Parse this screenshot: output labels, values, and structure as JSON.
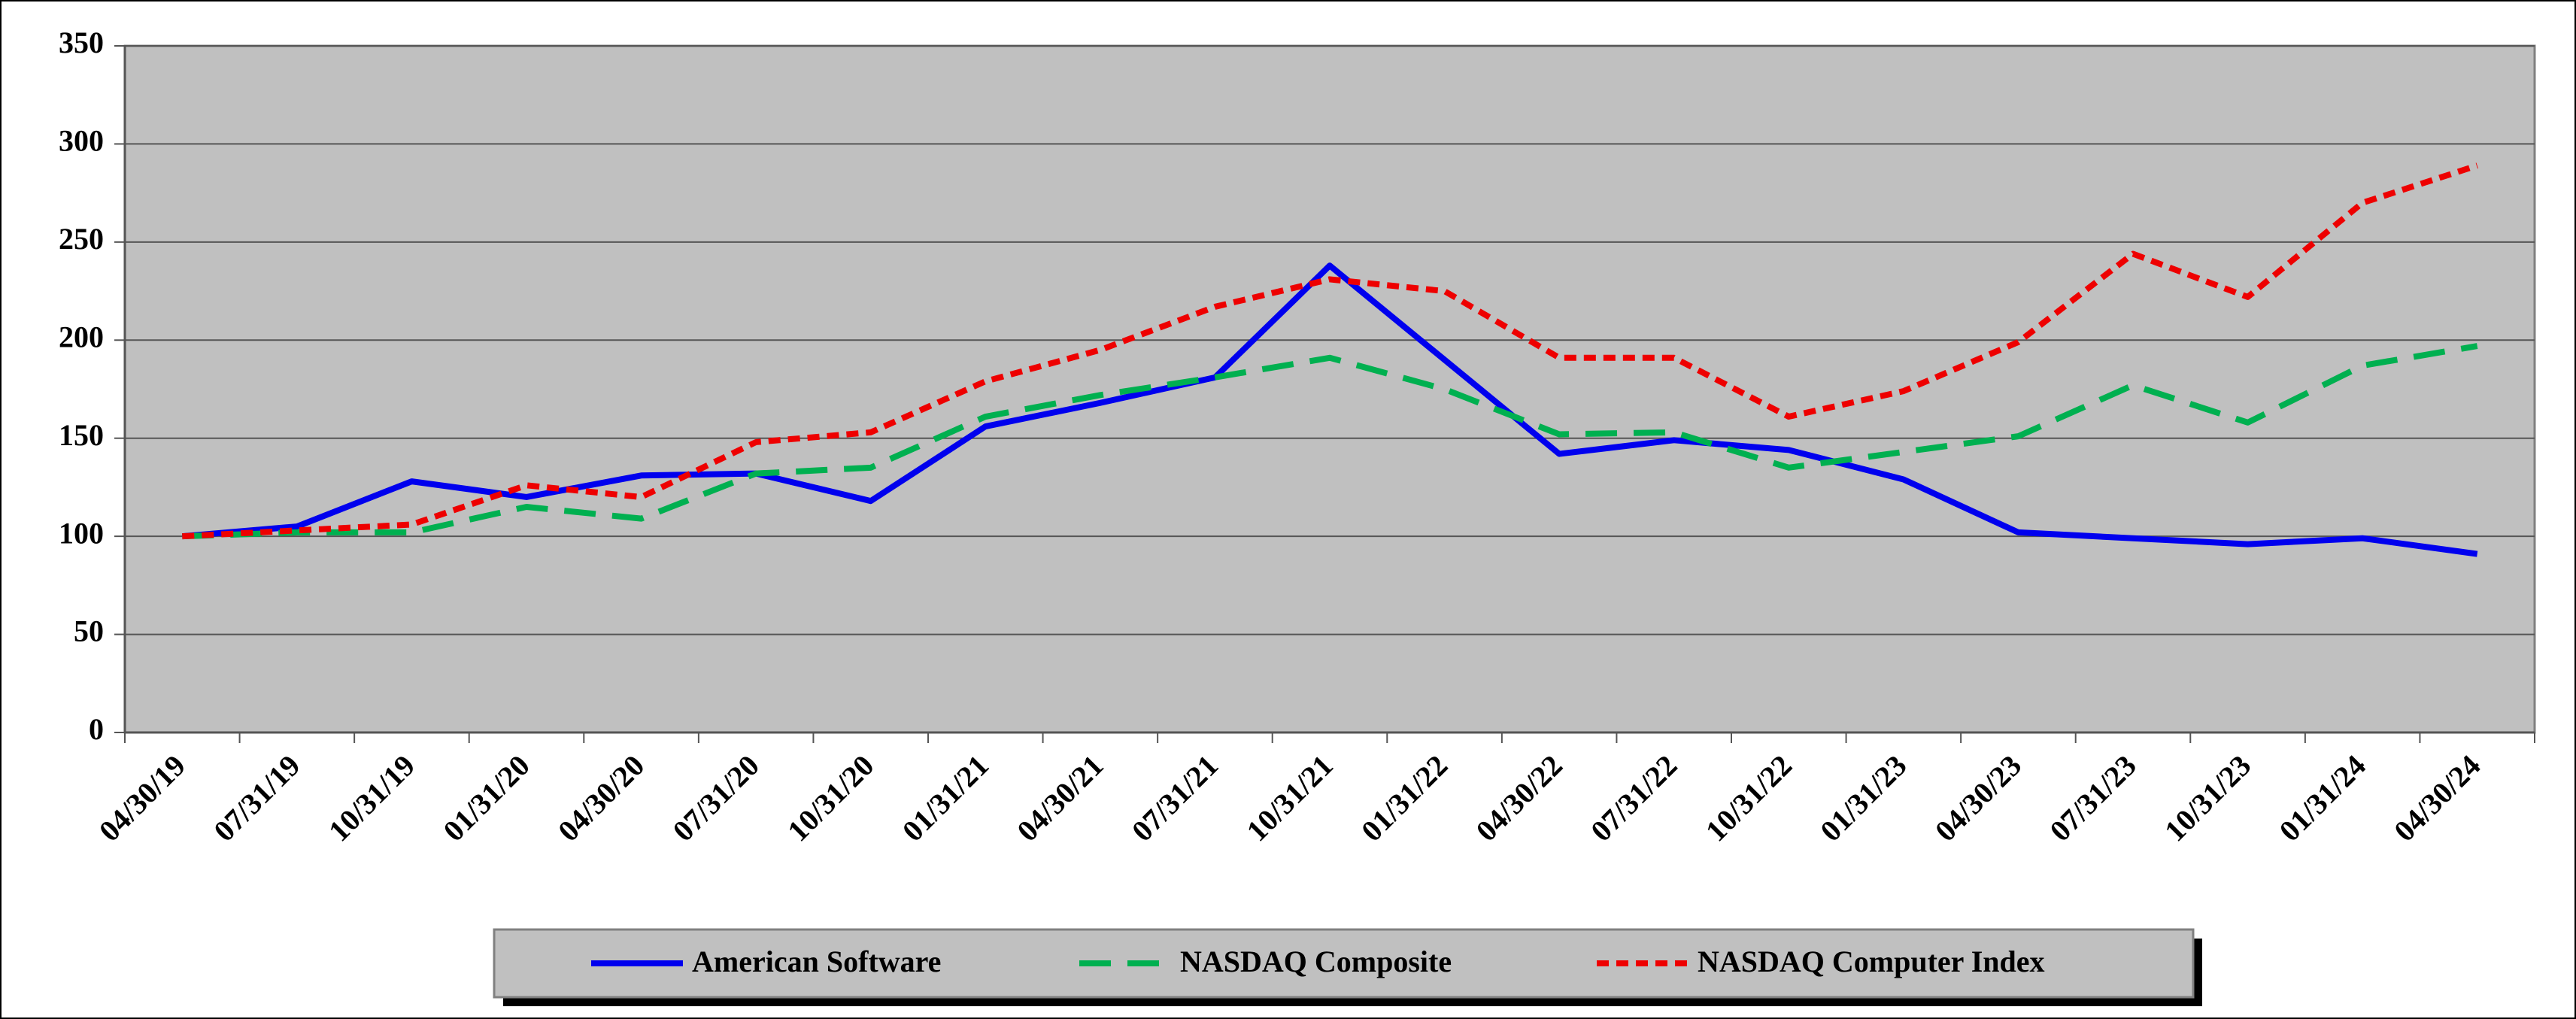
{
  "chart_data": {
    "type": "line",
    "categories": [
      "04/30/19",
      "07/31/19",
      "10/31/19",
      "01/31/20",
      "04/30/20",
      "07/31/20",
      "10/31/20",
      "01/31/21",
      "04/30/21",
      "07/31/21",
      "10/31/21",
      "01/31/22",
      "04/30/22",
      "07/31/22",
      "10/31/22",
      "01/31/23",
      "04/30/23",
      "07/31/23",
      "10/31/23",
      "01/31/24",
      "04/30/24"
    ],
    "series": [
      {
        "name": "American Software",
        "color": "#0000ee",
        "line_style": "solid",
        "values": [
          100,
          105,
          128,
          120,
          131,
          132,
          118,
          156,
          168,
          181,
          238,
          190,
          142,
          149,
          144,
          129,
          102,
          99,
          96,
          99,
          91
        ]
      },
      {
        "name": "NASDAQ Composite",
        "color": "#00b050",
        "line_style": "dashed",
        "values": [
          100,
          102,
          102,
          115,
          109,
          132,
          135,
          161,
          172,
          181,
          191,
          175,
          152,
          153,
          135,
          143,
          151,
          177,
          158,
          187,
          197
        ]
      },
      {
        "name": "NASDAQ Computer Index",
        "color": "#ee0000",
        "line_style": "dotted",
        "values": [
          100,
          103,
          106,
          126,
          120,
          148,
          153,
          179,
          195,
          217,
          231,
          225,
          191,
          191,
          161,
          174,
          199,
          244,
          222,
          270,
          289
        ]
      }
    ],
    "ylim": [
      0,
      350
    ],
    "yticks": [
      0,
      50,
      100,
      150,
      200,
      250,
      300,
      350
    ],
    "grid": true
  }
}
